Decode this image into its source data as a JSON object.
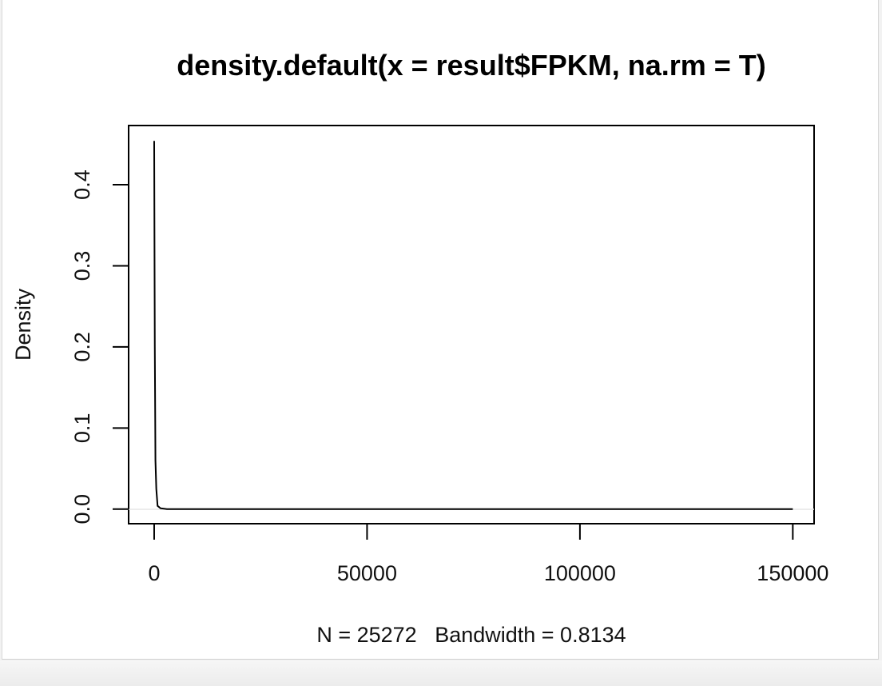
{
  "chart_data": {
    "type": "line",
    "title": "density.default(x = result$FPKM, na.rm = T)",
    "xlabel": "N = 25272   Bandwidth = 0.8134",
    "ylabel": "Density",
    "xlim": [
      -6000,
      155000
    ],
    "ylim": [
      -0.018,
      0.473
    ],
    "x_ticks": [
      0,
      50000,
      100000,
      150000
    ],
    "x_tick_labels": [
      "0",
      "50000",
      "100000",
      "150000"
    ],
    "y_ticks": [
      0.0,
      0.1,
      0.2,
      0.3,
      0.4
    ],
    "y_tick_labels": [
      "0.0",
      "0.1",
      "0.2",
      "0.3",
      "0.4"
    ],
    "grid": false,
    "series": [
      {
        "x": [
          0,
          150,
          300,
          500,
          800,
          1500,
          3000,
          150000
        ],
        "y": [
          0.454,
          0.2,
          0.06,
          0.025,
          0.004,
          0.001,
          0.0,
          0.0
        ],
        "color": "#000000"
      }
    ]
  }
}
